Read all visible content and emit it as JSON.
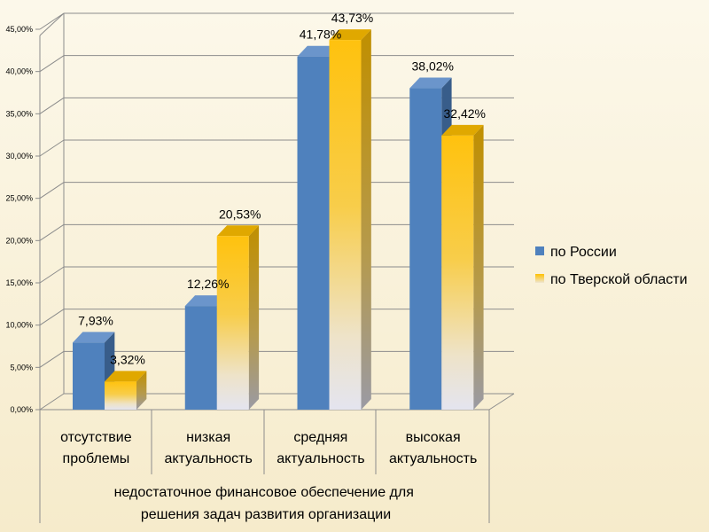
{
  "chart_data": {
    "type": "bar",
    "categories": [
      "отсутствие\nпроблемы",
      "низкая\nактуальность",
      "средняя\nактуальность",
      "высокая\nактуальность"
    ],
    "category_group": "недостаточное финансовое обеспечение для\nрешения задач развития организации",
    "series": [
      {
        "name": "по России",
        "values": [
          7.93,
          12.26,
          41.78,
          38.02
        ],
        "labels": [
          "7,93%",
          "12,26%",
          "41,78%",
          "38,02%"
        ],
        "color": "#4f81bd"
      },
      {
        "name": "по Тверской области",
        "values": [
          3.32,
          20.53,
          43.73,
          32.42
        ],
        "labels": [
          "3,32%",
          "20,53%",
          "43,73%",
          "32,42%"
        ],
        "color": "#ffc000"
      }
    ],
    "yticks": [
      "0,00%",
      "5,00%",
      "10,00%",
      "15,00%",
      "20,00%",
      "25,00%",
      "30,00%",
      "35,00%",
      "40,00%",
      "45,00%"
    ],
    "ylim": [
      0,
      45
    ],
    "grid": true,
    "legend_position": "right",
    "style": "3d-clustered-column"
  }
}
